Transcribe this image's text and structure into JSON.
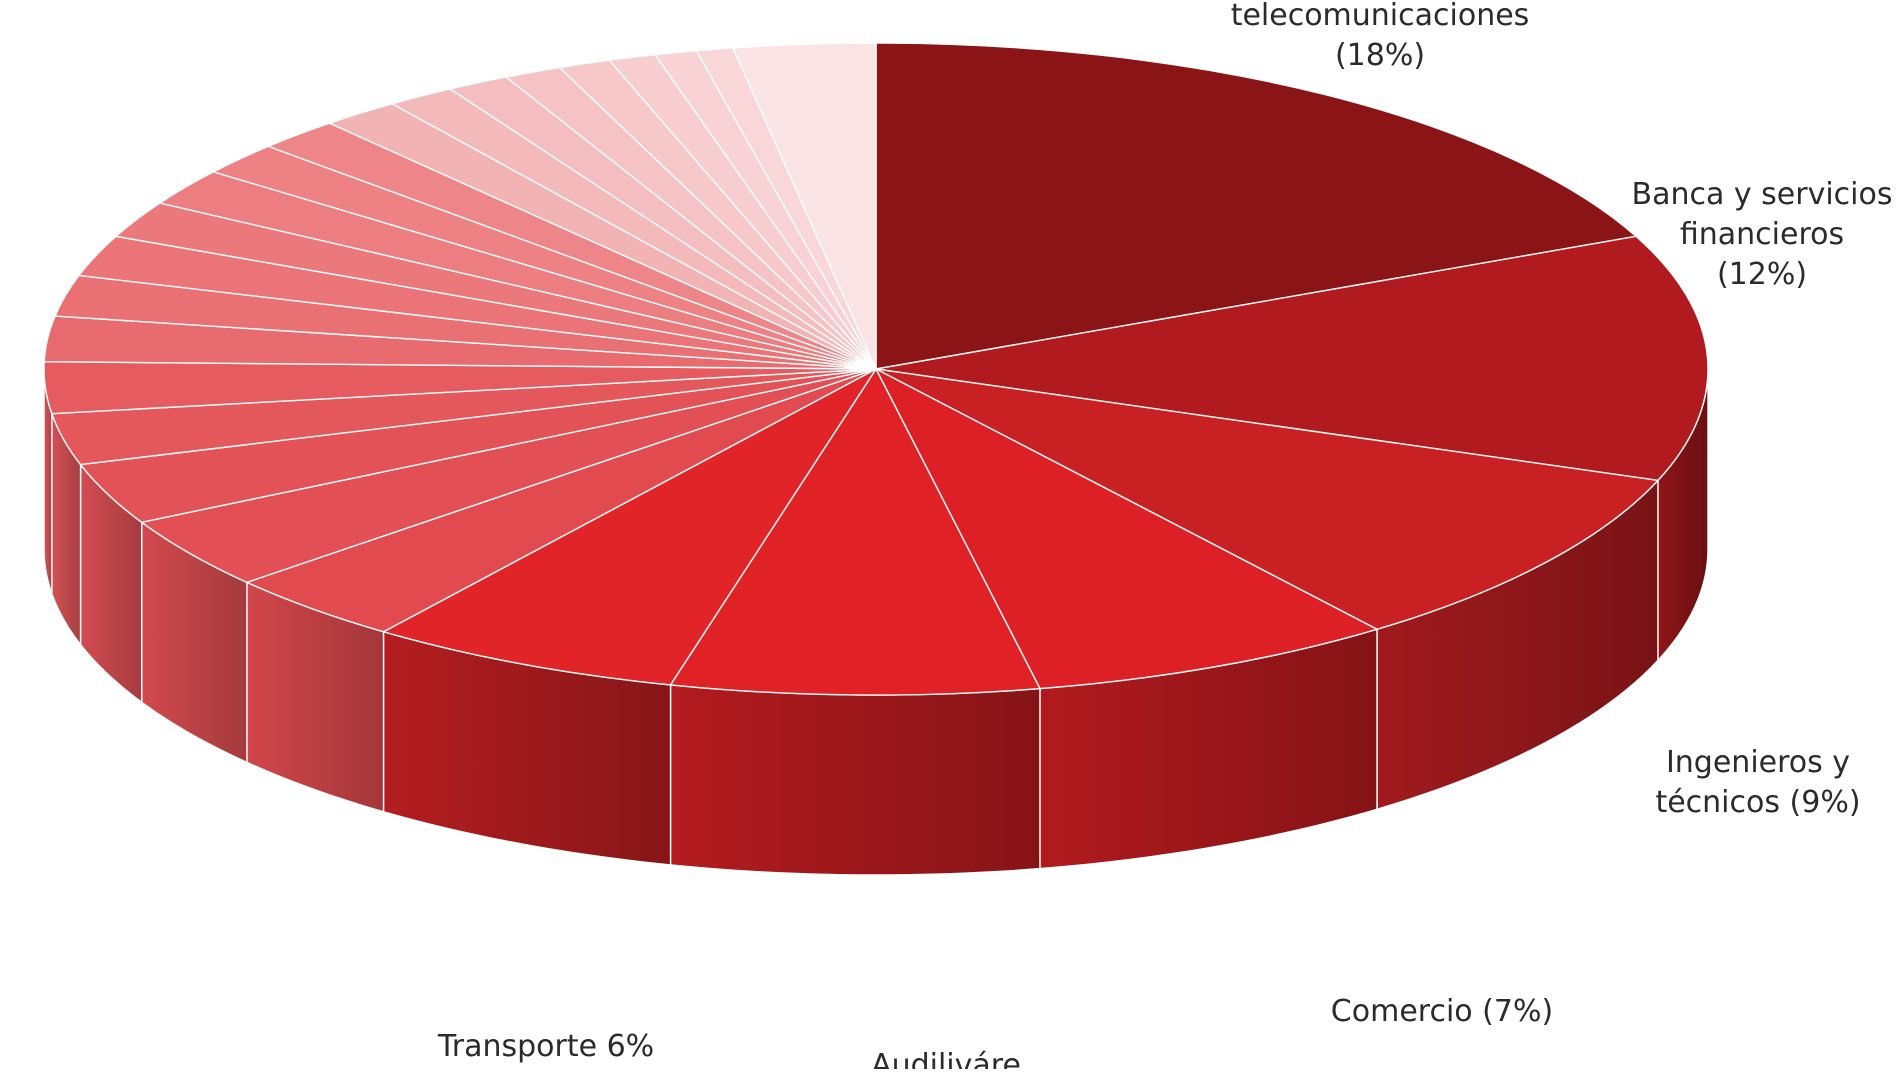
{
  "chart_data": {
    "type": "pie",
    "style": "3d",
    "slices": [
      {
        "label_lines": [
          "telecomunicaciones",
          "(18%)"
        ],
        "value": 18,
        "color": "#8b1417"
      },
      {
        "label_lines": [
          "Banca y servicios",
          "financieros",
          "(12%)"
        ],
        "value": 12,
        "color": "#b11a1e"
      },
      {
        "label_lines": [
          "Ingenieros y",
          "técnicos (9%)"
        ],
        "value": 9,
        "color": "#c92024"
      },
      {
        "label_lines": [
          "Comercio (7%)"
        ],
        "value": 7,
        "color": "#dd2025"
      },
      {
        "label_lines": [
          "Audiliváre"
        ],
        "value": 7,
        "color": "#e02227"
      },
      {
        "label_lines": [
          "Transporte 6%"
        ],
        "value": 6,
        "color": "#e12428"
      },
      {
        "value": 3.5,
        "color": "#e14b50"
      },
      {
        "value": 3.5,
        "color": "#e24f54"
      },
      {
        "value": 3,
        "color": "#e35257"
      },
      {
        "value": 2.5,
        "color": "#e4575b"
      },
      {
        "value": 2.5,
        "color": "#e65b60"
      },
      {
        "value": 2.2,
        "color": "#e86b6f"
      },
      {
        "value": 2,
        "color": "#e97073"
      },
      {
        "value": 2,
        "color": "#ea7477"
      },
      {
        "value": 1.8,
        "color": "#eb797c"
      },
      {
        "value": 1.8,
        "color": "#ec7d80"
      },
      {
        "value": 1.6,
        "color": "#ed8184"
      },
      {
        "value": 1.6,
        "color": "#ee8588"
      },
      {
        "value": 1.5,
        "color": "#f2b3b5"
      },
      {
        "value": 1.3,
        "color": "#f3b9bb"
      },
      {
        "value": 1.2,
        "color": "#f4bec0"
      },
      {
        "value": 1.1,
        "color": "#f5c3c5"
      },
      {
        "value": 1.0,
        "color": "#f6c8ca"
      },
      {
        "value": 0.9,
        "color": "#f7cdcf"
      },
      {
        "value": 0.8,
        "color": "#f8d2d4"
      },
      {
        "value": 0.7,
        "color": "#f9d7d8"
      },
      {
        "value": 2.7,
        "color": "#fae3e4"
      }
    ]
  }
}
